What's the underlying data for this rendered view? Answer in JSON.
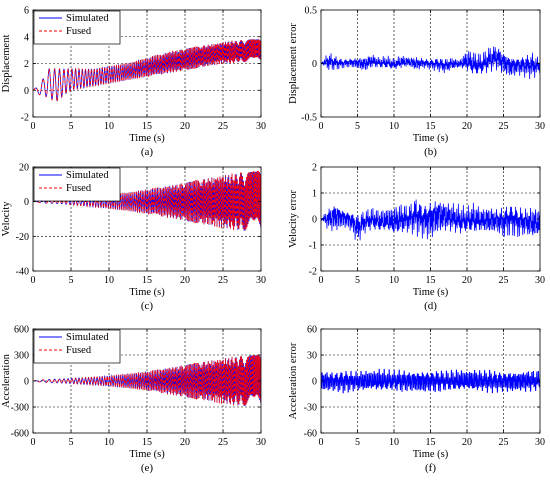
{
  "colors": {
    "simulated": "#0000ff",
    "fused": "#ff0000",
    "axis": "#000000",
    "grid": "#000000"
  },
  "chart_data": [
    {
      "id": "a",
      "panel_label": "(a)",
      "type": "line",
      "xlabel": "Time (s)",
      "ylabel": "Displacement",
      "xlim": [
        0,
        30
      ],
      "ylim": [
        -2,
        6
      ],
      "xticks": [
        0,
        5,
        10,
        15,
        20,
        25,
        30
      ],
      "yticks": [
        -2,
        0,
        2,
        4,
        6
      ],
      "grid": true,
      "legend": "top-left",
      "series": [
        {
          "name": "Simulated",
          "style": "solid",
          "color_key": "simulated",
          "x": [
            0,
            1,
            2,
            3,
            4,
            5,
            6,
            7,
            8,
            9,
            10,
            11,
            12,
            13,
            14,
            15,
            16,
            17,
            18,
            19,
            20,
            21,
            22,
            23,
            24,
            25,
            26,
            27,
            28,
            29,
            30
          ],
          "upper": [
            0.0,
            0.5,
            1.6,
            1.6,
            1.6,
            1.6,
            1.6,
            1.6,
            1.6,
            1.7,
            1.8,
            1.9,
            2.0,
            2.1,
            2.3,
            2.4,
            2.6,
            2.7,
            2.9,
            3.0,
            3.1,
            3.2,
            3.3,
            3.4,
            3.5,
            3.6,
            3.7,
            3.7,
            3.8,
            3.8,
            3.8
          ],
          "lower": [
            0.0,
            -0.4,
            -0.5,
            -0.9,
            -0.4,
            0.0,
            0.1,
            0.2,
            0.3,
            0.4,
            0.5,
            0.6,
            0.7,
            0.8,
            0.9,
            1.0,
            1.1,
            1.2,
            1.3,
            1.4,
            1.5,
            1.6,
            1.7,
            1.8,
            1.9,
            2.0,
            2.0,
            2.1,
            2.1,
            2.1,
            2.1
          ]
        },
        {
          "name": "Fused",
          "style": "dashed",
          "color_key": "fused"
        }
      ]
    },
    {
      "id": "b",
      "panel_label": "(b)",
      "type": "line",
      "xlabel": "Time (s)",
      "ylabel": "Displacement error",
      "xlim": [
        0,
        30
      ],
      "ylim": [
        -0.5,
        0.5
      ],
      "xticks": [
        0,
        5,
        10,
        15,
        20,
        25,
        30
      ],
      "yticks": [
        -0.5,
        0,
        0.5
      ],
      "grid": true,
      "series": [
        {
          "name": "",
          "style": "solid",
          "color_key": "simulated",
          "x": [
            0,
            1,
            2,
            3,
            4,
            5,
            6,
            7,
            8,
            9,
            10,
            11,
            12,
            13,
            14,
            15,
            16,
            17,
            18,
            19,
            20,
            21,
            22,
            23,
            24,
            25,
            26,
            27,
            28,
            29,
            30
          ],
          "upper": [
            0.0,
            0.12,
            0.08,
            0.05,
            0.06,
            0.07,
            0.08,
            0.1,
            0.06,
            0.08,
            0.05,
            0.09,
            0.07,
            0.08,
            0.06,
            0.05,
            0.07,
            0.06,
            0.07,
            0.04,
            0.15,
            0.12,
            0.1,
            0.17,
            0.2,
            0.14,
            0.1,
            0.08,
            0.1,
            0.12,
            0.05
          ],
          "lower": [
            0.0,
            -0.08,
            -0.07,
            -0.05,
            -0.04,
            -0.06,
            -0.09,
            -0.05,
            -0.05,
            -0.06,
            -0.07,
            -0.06,
            -0.04,
            -0.08,
            -0.05,
            -0.06,
            -0.08,
            -0.1,
            -0.07,
            -0.05,
            -0.1,
            -0.14,
            -0.12,
            -0.1,
            -0.08,
            -0.12,
            -0.15,
            -0.12,
            -0.14,
            -0.16,
            -0.1
          ]
        }
      ]
    },
    {
      "id": "c",
      "panel_label": "(c)",
      "type": "line",
      "xlabel": "Time (s)",
      "ylabel": "Velocity",
      "xlim": [
        0,
        30
      ],
      "ylim": [
        -40,
        20
      ],
      "xticks": [
        0,
        5,
        10,
        15,
        20,
        25,
        30
      ],
      "yticks": [
        -40,
        -20,
        0,
        20
      ],
      "grid": true,
      "legend": "top-left",
      "series": [
        {
          "name": "Simulated",
          "style": "solid",
          "color_key": "simulated",
          "x": [
            0,
            1,
            2,
            3,
            4,
            5,
            6,
            7,
            8,
            9,
            10,
            11,
            12,
            13,
            14,
            15,
            16,
            17,
            18,
            19,
            20,
            21,
            22,
            23,
            24,
            25,
            26,
            27,
            28,
            29,
            30
          ],
          "upper": [
            0.0,
            0.6,
            1.0,
            1.1,
            1.3,
            1.8,
            2.2,
            2.6,
            3.0,
            3.5,
            4.0,
            4.6,
            5.2,
            5.8,
            6.5,
            7.1,
            7.8,
            8.5,
            9.3,
            10.1,
            10.9,
            11.8,
            12.7,
            13.5,
            14.3,
            15.1,
            15.8,
            16.4,
            16.9,
            17.3,
            17.6
          ],
          "lower": [
            0.0,
            -0.6,
            -1.0,
            -1.1,
            -1.3,
            -1.8,
            -2.2,
            -2.6,
            -3.0,
            -3.5,
            -4.0,
            -4.6,
            -5.2,
            -5.8,
            -6.5,
            -7.1,
            -7.8,
            -8.5,
            -9.3,
            -10.1,
            -10.9,
            -11.8,
            -12.7,
            -13.5,
            -14.3,
            -15.1,
            -15.8,
            -16.4,
            -16.9,
            -17.3,
            -17.6
          ]
        },
        {
          "name": "Fused",
          "style": "dashed",
          "color_key": "fused"
        }
      ]
    },
    {
      "id": "d",
      "panel_label": "(d)",
      "type": "line",
      "xlabel": "Time (s)",
      "ylabel": "Velocity error",
      "xlim": [
        0,
        30
      ],
      "ylim": [
        -2,
        2
      ],
      "xticks": [
        0,
        5,
        10,
        15,
        20,
        25,
        30
      ],
      "yticks": [
        -2,
        -1,
        0,
        1,
        2
      ],
      "grid": true,
      "series": [
        {
          "name": "",
          "style": "solid",
          "color_key": "simulated",
          "x": [
            0,
            1,
            2,
            3,
            4,
            5,
            6,
            7,
            8,
            9,
            10,
            11,
            12,
            13,
            14,
            15,
            16,
            17,
            18,
            19,
            20,
            21,
            22,
            23,
            24,
            25,
            26,
            27,
            28,
            29,
            30
          ],
          "upper": [
            0.0,
            0.5,
            0.8,
            0.5,
            0.4,
            0.3,
            0.4,
            0.5,
            0.4,
            0.5,
            0.6,
            0.7,
            0.6,
            1.0,
            0.7,
            0.9,
            1.0,
            0.8,
            0.7,
            0.6,
            0.5,
            0.7,
            0.5,
            0.6,
            0.5,
            0.6,
            0.7,
            0.6,
            0.5,
            0.6,
            0.5
          ],
          "lower": [
            0.0,
            -0.5,
            -0.6,
            -0.4,
            -0.5,
            -1.0,
            -0.6,
            -0.5,
            -0.6,
            -0.6,
            -0.8,
            -0.7,
            -0.6,
            -0.7,
            -0.8,
            -0.9,
            -0.7,
            -0.6,
            -0.6,
            -0.7,
            -0.6,
            -0.7,
            -0.6,
            -0.7,
            -0.6,
            -0.8,
            -0.7,
            -0.8,
            -0.7,
            -0.9,
            -0.8
          ]
        }
      ]
    },
    {
      "id": "e",
      "panel_label": "(e)",
      "type": "line",
      "xlabel": "Time (s)",
      "ylabel": "Acceleration",
      "xlim": [
        0,
        30
      ],
      "ylim": [
        -600,
        600
      ],
      "xticks": [
        0,
        5,
        10,
        15,
        20,
        25,
        30
      ],
      "yticks": [
        -600,
        -300,
        0,
        300,
        600
      ],
      "grid": true,
      "legend": "top-left",
      "series": [
        {
          "name": "Simulated",
          "style": "solid",
          "color_key": "simulated",
          "x": [
            0,
            1,
            2,
            3,
            4,
            5,
            6,
            7,
            8,
            9,
            10,
            11,
            12,
            13,
            14,
            15,
            16,
            17,
            18,
            19,
            20,
            21,
            22,
            23,
            24,
            25,
            26,
            27,
            28,
            29,
            30
          ],
          "upper": [
            0,
            12,
            18,
            22,
            25,
            30,
            35,
            40,
            45,
            52,
            60,
            70,
            80,
            90,
            100,
            112,
            125,
            140,
            155,
            170,
            185,
            200,
            215,
            230,
            245,
            260,
            272,
            282,
            290,
            296,
            300
          ],
          "lower": [
            0,
            -12,
            -18,
            -22,
            -25,
            -30,
            -35,
            -40,
            -45,
            -52,
            -60,
            -70,
            -80,
            -90,
            -100,
            -112,
            -125,
            -140,
            -155,
            -170,
            -185,
            -200,
            -215,
            -230,
            -245,
            -260,
            -272,
            -282,
            -290,
            -296,
            -300
          ]
        },
        {
          "name": "Fused",
          "style": "dashed",
          "color_key": "fused"
        }
      ]
    },
    {
      "id": "f",
      "panel_label": "(f)",
      "type": "line",
      "xlabel": "Time (s)",
      "ylabel": "Acceleration error",
      "xlim": [
        0,
        30
      ],
      "ylim": [
        -60,
        60
      ],
      "xticks": [
        0,
        5,
        10,
        15,
        20,
        25,
        30
      ],
      "yticks": [
        -60,
        -30,
        0,
        30,
        60
      ],
      "grid": true,
      "series": [
        {
          "name": "",
          "style": "solid",
          "color_key": "simulated",
          "x": [
            0,
            1,
            2,
            3,
            4,
            5,
            6,
            7,
            8,
            9,
            10,
            11,
            12,
            13,
            14,
            15,
            16,
            17,
            18,
            19,
            20,
            21,
            22,
            23,
            24,
            25,
            26,
            27,
            28,
            29,
            30
          ],
          "upper": [
            15,
            14,
            13,
            15,
            14,
            13,
            15,
            14,
            16,
            14,
            13,
            15,
            14,
            15,
            16,
            14,
            15,
            13,
            14,
            15,
            14,
            16,
            14,
            15,
            14,
            13,
            15,
            14,
            15,
            14,
            13
          ],
          "lower": [
            -15,
            -14,
            -13,
            -15,
            -14,
            -13,
            -15,
            -14,
            -16,
            -14,
            -13,
            -15,
            -14,
            -15,
            -16,
            -14,
            -15,
            -13,
            -14,
            -15,
            -14,
            -16,
            -14,
            -15,
            -14,
            -13,
            -15,
            -14,
            -15,
            -14,
            -13
          ]
        }
      ]
    }
  ]
}
